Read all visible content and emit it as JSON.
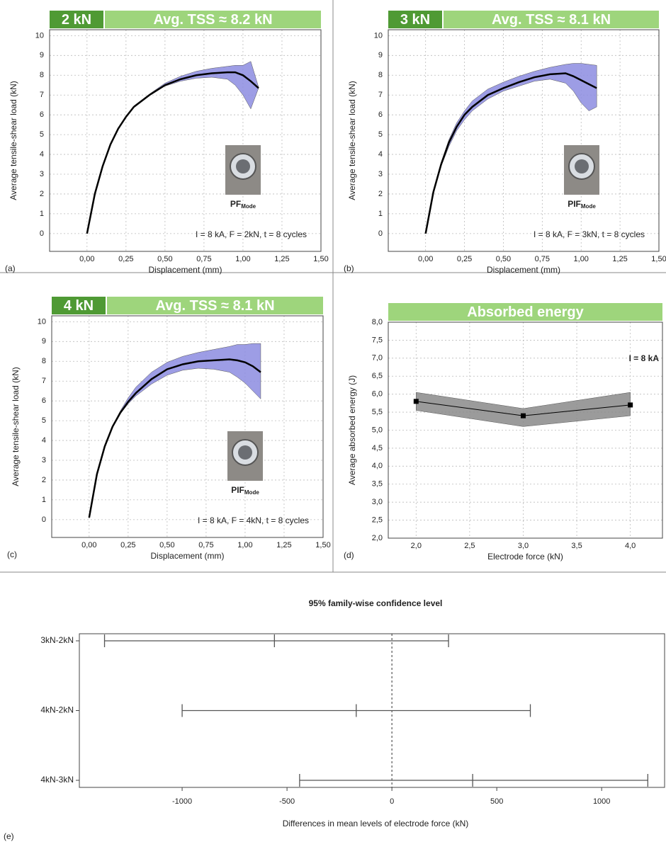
{
  "chart_data": [
    {
      "type": "line",
      "panel_label": "(a)",
      "header_left": "2 kN",
      "header_right": "Avg. TSS ≈ 8.2 kN",
      "annotation": "I = 8 kA, F = 2kN, t = 8 cycles",
      "image_label": {
        "main": "PF",
        "sub": "Mode"
      },
      "xlabel": "Displacement (mm)",
      "ylabel": "Average tensile-shear load (kN)",
      "x": [
        0,
        0.05,
        0.1,
        0.15,
        0.2,
        0.25,
        0.3,
        0.4,
        0.5,
        0.6,
        0.7,
        0.8,
        0.9,
        0.95,
        1.0,
        1.05,
        1.1
      ],
      "values": [
        0,
        2.0,
        3.4,
        4.5,
        5.3,
        5.9,
        6.4,
        7.0,
        7.5,
        7.8,
        8.0,
        8.1,
        8.15,
        8.15,
        8.0,
        7.7,
        7.35
      ],
      "lower": [
        0,
        2.0,
        3.4,
        4.5,
        5.3,
        5.9,
        6.4,
        7.0,
        7.45,
        7.7,
        7.85,
        7.9,
        7.8,
        7.5,
        7.0,
        6.3,
        7.35
      ],
      "upper": [
        0,
        2.0,
        3.4,
        4.5,
        5.3,
        5.9,
        6.45,
        7.05,
        7.6,
        7.95,
        8.2,
        8.35,
        8.45,
        8.5,
        8.5,
        8.7,
        7.4
      ],
      "color": "#000000",
      "band_color": "#8c8ce0",
      "xlim": [
        -0.24,
        1.5
      ],
      "ylim": [
        -0.9,
        10.3
      ],
      "xticks": [
        {
          "value": 0,
          "label": "0,00"
        },
        {
          "value": 0.25,
          "label": "0,25"
        },
        {
          "value": 0.5,
          "label": "0,50"
        },
        {
          "value": 0.75,
          "label": "0,75"
        },
        {
          "value": 1,
          "label": "1,00"
        },
        {
          "value": 1.25,
          "label": "1,25"
        },
        {
          "value": 1.5,
          "label": "1,50"
        }
      ],
      "yticks": [
        0,
        1,
        2,
        3,
        4,
        5,
        6,
        7,
        8,
        9,
        10
      ],
      "grid": true
    },
    {
      "type": "line",
      "panel_label": "(b)",
      "header_left": "3 kN",
      "header_right": "Avg. TSS ≈ 8.1 kN",
      "annotation": "I = 8 kA, F = 3kN, t = 8 cycles",
      "image_label": {
        "main": "PIF",
        "sub": "Mode"
      },
      "xlabel": "Displacement (mm)",
      "ylabel": "Average tensile-shear load (kN)",
      "x": [
        0,
        0.05,
        0.1,
        0.15,
        0.2,
        0.25,
        0.3,
        0.4,
        0.5,
        0.6,
        0.7,
        0.8,
        0.9,
        0.95,
        1.0,
        1.05,
        1.1
      ],
      "values": [
        0,
        2.1,
        3.5,
        4.6,
        5.4,
        6.0,
        6.4,
        7.0,
        7.35,
        7.65,
        7.9,
        8.05,
        8.1,
        7.95,
        7.75,
        7.55,
        7.35
      ],
      "lower": [
        0,
        2.0,
        3.4,
        4.4,
        5.2,
        5.75,
        6.2,
        6.8,
        7.2,
        7.45,
        7.7,
        7.8,
        7.6,
        7.2,
        6.6,
        6.2,
        6.4
      ],
      "upper": [
        0,
        2.2,
        3.6,
        4.75,
        5.6,
        6.2,
        6.7,
        7.3,
        7.65,
        7.95,
        8.2,
        8.4,
        8.55,
        8.6,
        8.6,
        8.55,
        8.5
      ],
      "color": "#000000",
      "band_color": "#8c8ce0",
      "xlim": [
        -0.24,
        1.5
      ],
      "ylim": [
        -0.9,
        10.3
      ],
      "xticks": [
        {
          "value": 0,
          "label": "0,00"
        },
        {
          "value": 0.25,
          "label": "0,25"
        },
        {
          "value": 0.5,
          "label": "0,50"
        },
        {
          "value": 0.75,
          "label": "0,75"
        },
        {
          "value": 1,
          "label": "1,00"
        },
        {
          "value": 1.25,
          "label": "1,25"
        },
        {
          "value": 1.5,
          "label": "1,50"
        }
      ],
      "yticks": [
        0,
        1,
        2,
        3,
        4,
        5,
        6,
        7,
        8,
        9,
        10
      ],
      "grid": true
    },
    {
      "type": "line",
      "panel_label": "(c)",
      "header_left": "4 kN",
      "header_right": "Avg. TSS ≈ 8.1 kN",
      "annotation": "I = 8 kA, F = 4kN, t = 8 cycles",
      "image_label": {
        "main": "PIF",
        "sub": "Mode"
      },
      "xlabel": "Displacement (mm)",
      "ylabel": "Average tensile-shear load (kN)",
      "x": [
        0,
        0.05,
        0.1,
        0.15,
        0.2,
        0.25,
        0.3,
        0.4,
        0.5,
        0.6,
        0.7,
        0.8,
        0.9,
        0.95,
        1.0,
        1.05,
        1.1
      ],
      "values": [
        0.1,
        2.3,
        3.7,
        4.7,
        5.4,
        5.95,
        6.4,
        7.1,
        7.6,
        7.85,
        8.0,
        8.05,
        8.1,
        8.05,
        7.95,
        7.75,
        7.45
      ],
      "lower": [
        0.1,
        2.3,
        3.7,
        4.7,
        5.35,
        5.85,
        6.25,
        6.85,
        7.3,
        7.55,
        7.65,
        7.6,
        7.45,
        7.2,
        6.9,
        6.5,
        6.1
      ],
      "upper": [
        0.1,
        2.3,
        3.7,
        4.75,
        5.5,
        6.15,
        6.7,
        7.45,
        7.95,
        8.25,
        8.45,
        8.6,
        8.75,
        8.85,
        8.85,
        8.9,
        8.9
      ],
      "color": "#000000",
      "band_color": "#8c8ce0",
      "xlim": [
        -0.24,
        1.5
      ],
      "ylim": [
        -0.9,
        10.3
      ],
      "xticks": [
        {
          "value": 0,
          "label": "0,00"
        },
        {
          "value": 0.25,
          "label": "0,25"
        },
        {
          "value": 0.5,
          "label": "0,50"
        },
        {
          "value": 0.75,
          "label": "0,75"
        },
        {
          "value": 1,
          "label": "1,00"
        },
        {
          "value": 1.25,
          "label": "1,25"
        },
        {
          "value": 1.5,
          "label": "1,50"
        }
      ],
      "yticks": [
        0,
        1,
        2,
        3,
        4,
        5,
        6,
        7,
        8,
        9,
        10
      ],
      "grid": true
    },
    {
      "type": "line",
      "panel_label": "(d)",
      "header_right": "Absorbed energy",
      "annotation": "I = 8 kA",
      "xlabel": "Electrode force (kN)",
      "ylabel": "Average absorbed energy (J)",
      "x": [
        2,
        3,
        4
      ],
      "values": [
        5.8,
        5.4,
        5.7
      ],
      "lower": [
        5.55,
        5.1,
        5.4
      ],
      "upper": [
        6.05,
        5.6,
        6.05
      ],
      "markers": true,
      "color": "#000000",
      "band_color": "#8a8a8a",
      "xlim": [
        1.74,
        4.3
      ],
      "ylim": [
        2,
        8
      ],
      "xticks": [
        {
          "value": 2,
          "label": "2,0"
        },
        {
          "value": 2.5,
          "label": "2,5"
        },
        {
          "value": 3,
          "label": "3,0"
        },
        {
          "value": 3.5,
          "label": "3,5"
        },
        {
          "value": 4,
          "label": "4,0"
        }
      ],
      "yticks": [
        {
          "value": 2,
          "label": "2,0"
        },
        {
          "value": 2.5,
          "label": "2,5"
        },
        {
          "value": 3,
          "label": "3,0"
        },
        {
          "value": 3.5,
          "label": "3,5"
        },
        {
          "value": 4,
          "label": "4,0"
        },
        {
          "value": 4.5,
          "label": "4,5"
        },
        {
          "value": 5,
          "label": "5,0"
        },
        {
          "value": 5.5,
          "label": "5,5"
        },
        {
          "value": 6,
          "label": "6,0"
        },
        {
          "value": 6.5,
          "label": "6,5"
        },
        {
          "value": 7,
          "label": "7,0"
        },
        {
          "value": 7.5,
          "label": "7,5"
        },
        {
          "value": 8,
          "label": "8,0"
        }
      ],
      "grid": true
    },
    {
      "type": "interval",
      "panel_label": "(e)",
      "title": "95% family-wise confidence level",
      "xlabel": "Differences in mean levels of electrode force (kN)",
      "categories": [
        "3kN-2kN",
        "4kN-2kN",
        "4kN-3kN"
      ],
      "values": [
        -560,
        -170,
        385
      ],
      "lower": [
        -1370,
        -1000,
        -440
      ],
      "upper": [
        270,
        660,
        1220
      ],
      "reference_line": 0,
      "color": "#555555",
      "xlim": [
        -1490,
        1300
      ],
      "xticks": [
        -1000,
        -500,
        0,
        500,
        1000
      ]
    }
  ]
}
